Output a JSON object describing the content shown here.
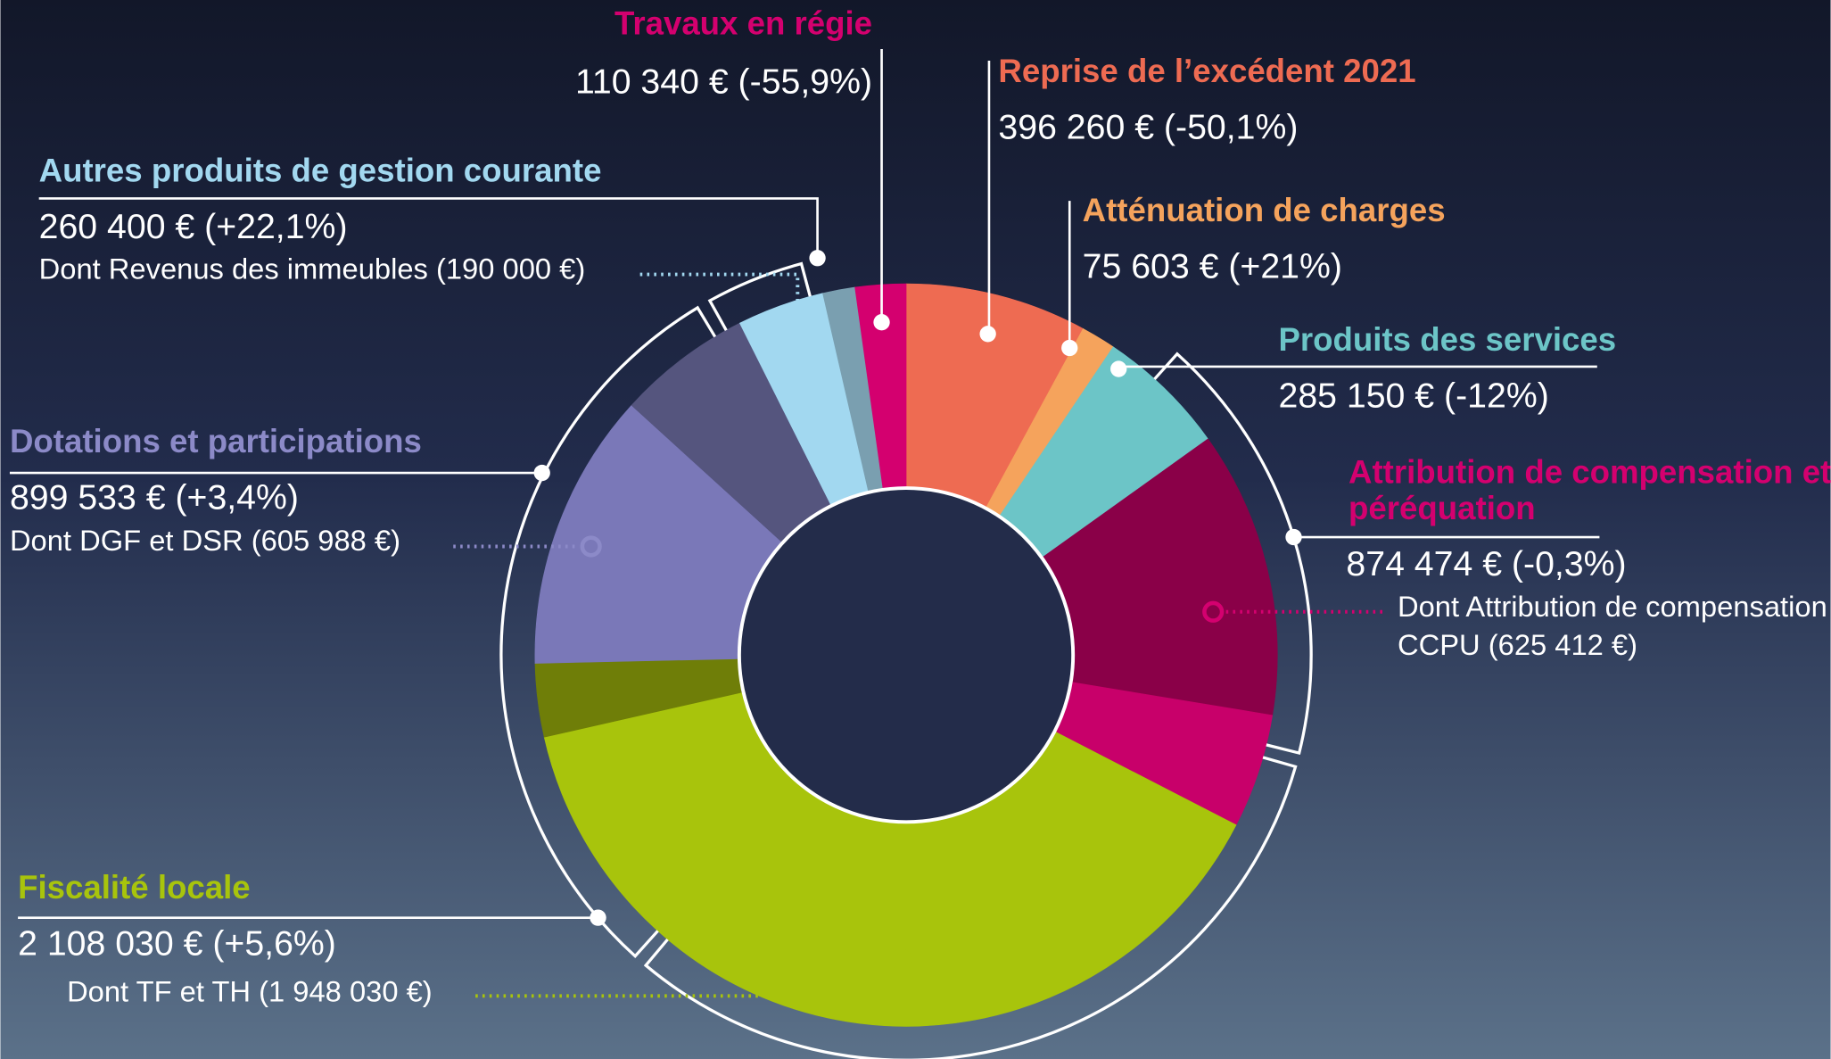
{
  "chart_data": {
    "type": "donut",
    "categories": [
      "Reprise de l’excédent 2021",
      "Atténuation de charges",
      "Produits des services",
      "Attribution de compensation et péréquation",
      "Fiscalité locale",
      "Dotations et participations",
      "Autres produits de gestion courante",
      "Travaux en régie"
    ],
    "values": [
      396260,
      75603,
      285150,
      874474,
      2108030,
      899533,
      260400,
      110340
    ],
    "value_labels": [
      "396 260 € (-50,1%)",
      "75 603 € (+21%)",
      "285 150 € (-12%)",
      "874 474 € (-0,3%)",
      "2 108 030 € (+5,6%)",
      "899 533 € (+3,4%)",
      "260 400 € (+22,1%)",
      "110 340 € (-55,9%)"
    ],
    "colors": [
      "#ee6b52",
      "#f5a35c",
      "#6cc5c7",
      "#8a0048",
      "#a8c40c",
      "#7a78b8",
      "#a2d8f0",
      "#d4006f"
    ],
    "rest_colors": [
      null,
      null,
      null,
      "#c8006a",
      "#6f7e08",
      "#55557e",
      "#7a9fb0",
      null
    ],
    "sub_values": [
      null,
      null,
      null,
      625412,
      1948030,
      605988,
      190000,
      null
    ],
    "sub_labels": [
      null,
      null,
      null,
      "Dont Attribution de compensation CCPU (625 412 €)",
      "Dont TF et TH (1 948 030 €)",
      "Dont DGF et DSR (605 988 €)",
      "Dont Revenus des immeubles (190 000 €)",
      null
    ],
    "label_colors": [
      "#ee6b52",
      "#f5a35c",
      "#6cc5c7",
      "#d4006f",
      "#a8c40c",
      "#8c8ac8",
      "#a2d8f0",
      "#d4006f"
    ]
  }
}
